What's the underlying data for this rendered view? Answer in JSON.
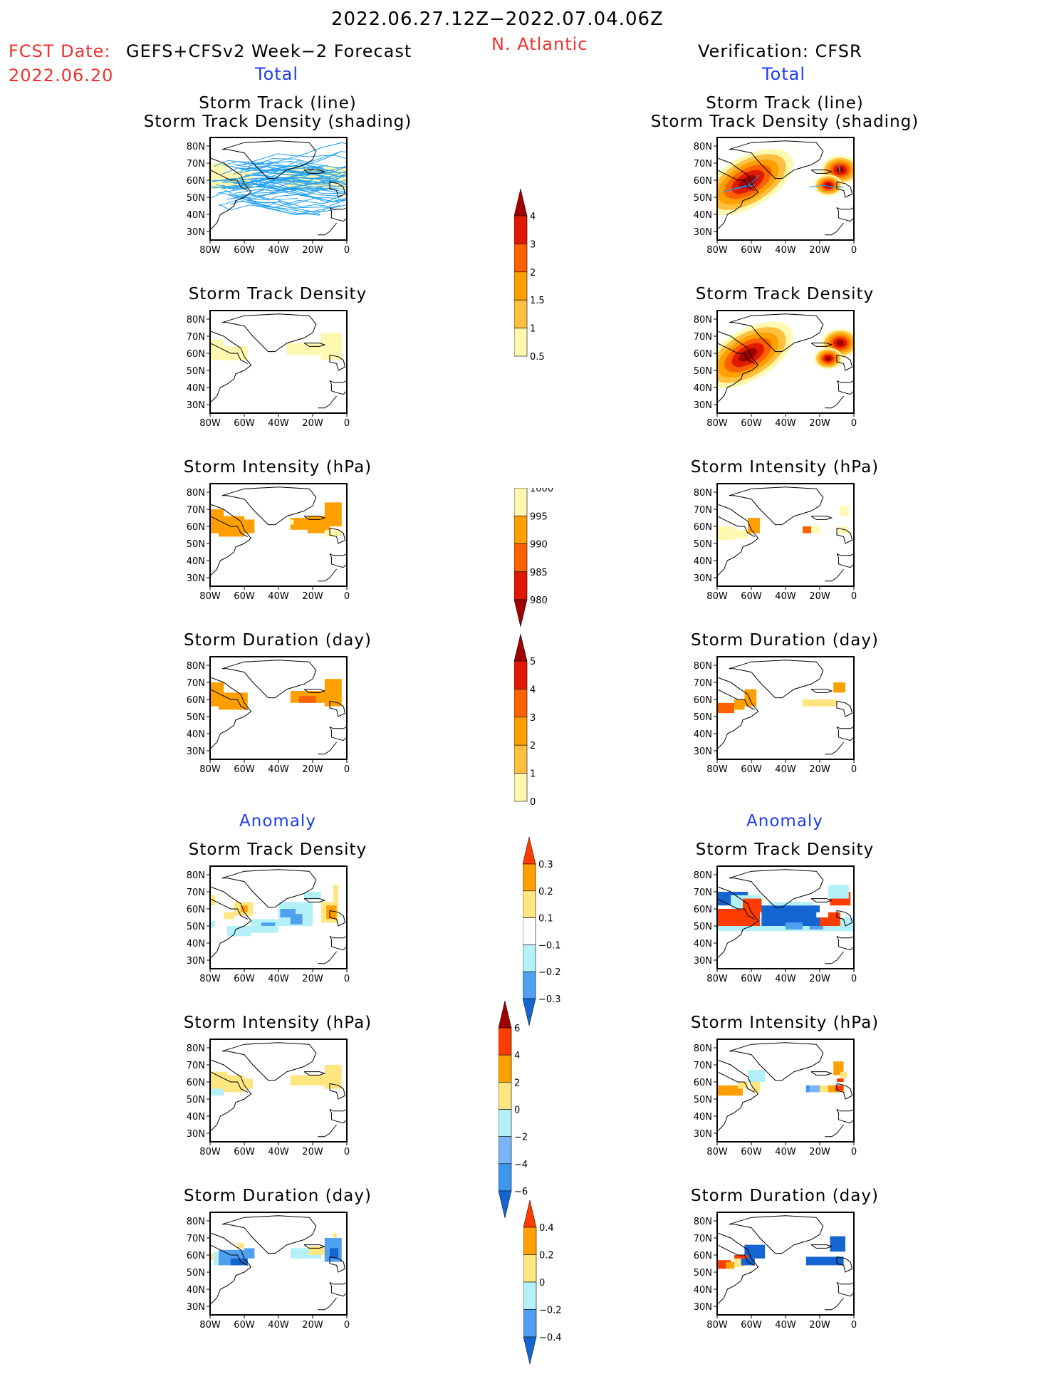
{
  "header": {
    "period": "2022.06.27.12Z−2022.07.04.06Z",
    "region": "N. Atlantic",
    "fcst_label": "FCST Date:",
    "fcst_date": "2022.06.20",
    "forecast_title": "GEFS+CFSv2 Week−2 Forecast",
    "verification_title": "Verification: CFSR"
  },
  "sections": {
    "total_left": "Total",
    "total_right": "Total",
    "anomaly_left": "Anomaly",
    "anomaly_right": "Anomaly"
  },
  "axes": {
    "lat_ticks": [
      "80N",
      "70N",
      "60N",
      "50N",
      "40N",
      "30N"
    ],
    "lon_ticks": [
      "80W",
      "60W",
      "40W",
      "20W",
      "0"
    ]
  },
  "panel_titles": {
    "track_line1": "Storm Track (line)",
    "track_line2": "Storm Track Density (shading)",
    "density": "Storm Track Density",
    "intensity": "Storm Intensity (hPa)",
    "duration": "Storm Duration (day)"
  },
  "colorbars": {
    "total_density": {
      "labels": [
        "4",
        "3",
        "2",
        "1.5",
        "1",
        "0.5"
      ],
      "colors": [
        "#a00000",
        "#e01a00",
        "#ff6000",
        "#ffa000",
        "#ffc040",
        "#fff8b0"
      ],
      "triangle": "top"
    },
    "total_intensity": {
      "labels": [
        "1000",
        "995",
        "990",
        "985",
        "980"
      ],
      "colors": [
        "#fff8b0",
        "#ffa000",
        "#ff6000",
        "#e01a00",
        "#a00000"
      ],
      "triangle": "bottom"
    },
    "total_duration": {
      "labels": [
        "5",
        "4",
        "3",
        "2",
        "1",
        "0"
      ],
      "colors": [
        "#a00000",
        "#e01a00",
        "#ff6000",
        "#ffa000",
        "#ffc040",
        "#fff8b0"
      ],
      "triangle": "top"
    },
    "anom_density": {
      "labels": [
        "0.3",
        "0.2",
        "0.1",
        "−0.1",
        "−0.2",
        "−0.3"
      ],
      "colors": [
        "#ff3c00",
        "#ffa000",
        "#ffe680",
        "#ffffff",
        "#b4f0f8",
        "#50a0f0",
        "#1464d2"
      ],
      "triangle": "both"
    },
    "anom_intensity": {
      "labels": [
        "6",
        "4",
        "2",
        "0",
        "−2",
        "−4",
        "−6"
      ],
      "colors": [
        "#a00000",
        "#ff3c00",
        "#ffa000",
        "#ffe680",
        "#b4f0f8",
        "#78b4f8",
        "#3c96f0",
        "#1464d2"
      ],
      "triangle": "both"
    },
    "anom_duration": {
      "labels": [
        "0.4",
        "0.2",
        "0",
        "−0.2",
        "−0.4"
      ],
      "colors": [
        "#ff3c00",
        "#ffa000",
        "#ffe680",
        "#b4f0f8",
        "#50a0f0",
        "#1464d2"
      ],
      "triangle": "both"
    }
  },
  "chart_data": [
    {
      "id": "fc-track",
      "type": "heatmap",
      "title": "Storm Track (line) / Storm Track Density (shading)",
      "source": "GEFS+CFSv2",
      "xlim": [
        -80,
        0
      ],
      "ylim": [
        25,
        85
      ],
      "cells": [
        [
          -80,
          55,
          -70,
          70,
          "#fff8b0"
        ],
        [
          -70,
          55,
          -55,
          65,
          "#fff8b0"
        ],
        [
          -35,
          55,
          0,
          68,
          "#fff8b0"
        ]
      ],
      "tracks": true
    },
    {
      "id": "ob-track",
      "type": "heatmap",
      "title": "Storm Track (line) / Storm Track Density (shading)",
      "source": "CFSR",
      "xlim": [
        -80,
        0
      ],
      "ylim": [
        25,
        85
      ],
      "blobs": [
        [
          -62,
          59,
          14,
          "density"
        ],
        [
          -8,
          66,
          8,
          "density"
        ],
        [
          -15,
          57,
          6,
          "density"
        ]
      ],
      "tracks_obs": [
        [
          [
            -77,
            53
          ],
          [
            -70,
            55
          ],
          [
            -62,
            57
          ],
          [
            -58,
            60
          ],
          [
            -56,
            63
          ]
        ],
        [
          [
            -74,
            54
          ],
          [
            -65,
            56
          ],
          [
            -58,
            57
          ]
        ],
        [
          [
            -26,
            56
          ],
          [
            -18,
            57
          ],
          [
            -12,
            56
          ],
          [
            -6,
            56
          ]
        ],
        [
          [
            -9,
            69
          ],
          [
            -8,
            64
          ]
        ]
      ]
    },
    {
      "id": "fc-density",
      "type": "heatmap",
      "title": "Storm Track Density",
      "source": "GEFS+CFSv2",
      "xlim": [
        -80,
        0
      ],
      "ylim": [
        25,
        85
      ],
      "cells": [
        [
          -80,
          56,
          -72,
          68,
          "#fff8b0"
        ],
        [
          -72,
          56,
          -58,
          64,
          "#fff8b0"
        ],
        [
          -35,
          59,
          -15,
          66,
          "#fff8b0"
        ],
        [
          -15,
          56,
          -3,
          72,
          "#fff8b0"
        ]
      ]
    },
    {
      "id": "ob-density",
      "type": "heatmap",
      "title": "Storm Track Density",
      "source": "CFSR",
      "xlim": [
        -80,
        0
      ],
      "ylim": [
        25,
        85
      ],
      "blobs": [
        [
          -62,
          59,
          14,
          "density"
        ],
        [
          -8,
          66,
          8,
          "density"
        ],
        [
          -15,
          57,
          6,
          "density"
        ]
      ]
    },
    {
      "id": "fc-intensity",
      "type": "heatmap",
      "title": "Storm Intensity (hPa)",
      "source": "GEFS+CFSv2",
      "xlim": [
        -80,
        0
      ],
      "ylim": [
        25,
        85
      ],
      "cells": [
        [
          -80,
          56,
          -72,
          70,
          "#ffa000"
        ],
        [
          -75,
          54,
          -60,
          66,
          "#ffa000"
        ],
        [
          -60,
          56,
          -54,
          64,
          "#ffa000"
        ],
        [
          -33,
          58,
          -20,
          65,
          "#ffa000"
        ],
        [
          -23,
          56,
          -10,
          66,
          "#ffa000"
        ],
        [
          -13,
          60,
          -3,
          74,
          "#ffa000"
        ],
        [
          -33,
          61,
          -31,
          64,
          "#fff8b0"
        ],
        [
          -13,
          54,
          -3,
          58,
          "#fff8b0"
        ]
      ]
    },
    {
      "id": "ob-intensity",
      "type": "heatmap",
      "title": "Storm Intensity (hPa)",
      "source": "CFSR",
      "xlim": [
        -80,
        0
      ],
      "ylim": [
        25,
        85
      ],
      "cells": [
        [
          -80,
          52,
          -70,
          60,
          "#fff8b0"
        ],
        [
          -70,
          53,
          -62,
          58,
          "#fff8b0"
        ],
        [
          -62,
          56,
          -55,
          65,
          "#ffa000"
        ],
        [
          -30,
          56,
          -25,
          60,
          "#ff6000"
        ],
        [
          -25,
          56,
          -20,
          60,
          "#fff8b0"
        ],
        [
          -10,
          56,
          -3,
          60,
          "#fff8b0"
        ],
        [
          -8,
          66,
          -3,
          72,
          "#fff8b0"
        ]
      ]
    },
    {
      "id": "fc-duration",
      "type": "heatmap",
      "title": "Storm Duration (day)",
      "source": "GEFS+CFSv2",
      "xlim": [
        -80,
        0
      ],
      "ylim": [
        25,
        85
      ],
      "cells": [
        [
          -80,
          56,
          -72,
          70,
          "#ffa000"
        ],
        [
          -75,
          54,
          -58,
          64,
          "#ffa000"
        ],
        [
          -33,
          58,
          -10,
          65,
          "#ffa000"
        ],
        [
          -28,
          58,
          -18,
          62,
          "#ff6000"
        ],
        [
          -13,
          56,
          -3,
          72,
          "#ffa000"
        ]
      ]
    },
    {
      "id": "ob-duration",
      "type": "heatmap",
      "title": "Storm Duration (day)",
      "source": "CFSR",
      "xlim": [
        -80,
        0
      ],
      "ylim": [
        25,
        85
      ],
      "cells": [
        [
          -80,
          52,
          -70,
          58,
          "#ff6000"
        ],
        [
          -70,
          54,
          -64,
          60,
          "#ffa000"
        ],
        [
          -64,
          56,
          -57,
          66,
          "#ffa000"
        ],
        [
          -12,
          64,
          -5,
          70,
          "#ffa000"
        ],
        [
          -30,
          56,
          -10,
          60,
          "#ffe680"
        ]
      ]
    },
    {
      "id": "fc-anom-density",
      "type": "heatmap",
      "title": "Storm Track Density",
      "source": "GEFS+CFSv2",
      "xlim": [
        -80,
        0
      ],
      "ylim": [
        25,
        85
      ],
      "cells": [
        [
          -80,
          62,
          -77,
          68,
          "#ffe680"
        ],
        [
          -66,
          56,
          -55,
          64,
          "#ffe680"
        ],
        [
          -62,
          58,
          -58,
          62,
          "#ffa000"
        ],
        [
          -72,
          54,
          -66,
          58,
          "#ffe680"
        ],
        [
          -80,
          49,
          -77,
          53,
          "#b4f0f8"
        ],
        [
          -56,
          46,
          -40,
          54,
          "#b4f0f8"
        ],
        [
          -40,
          50,
          -20,
          64,
          "#b4f0f8"
        ],
        [
          -25,
          66,
          -15,
          70,
          "#b4f0f8"
        ],
        [
          -70,
          44,
          -56,
          50,
          "#b4f0f8"
        ],
        [
          -50,
          50,
          -42,
          52,
          "#50a0f0"
        ],
        [
          -39,
          55,
          -30,
          60,
          "#50a0f0"
        ],
        [
          -33,
          51,
          -26,
          57,
          "#50a0f0"
        ],
        [
          -15,
          52,
          -5,
          64,
          "#ffe680"
        ],
        [
          -12,
          54,
          -6,
          62,
          "#ffa000"
        ],
        [
          -8,
          63,
          -5,
          74,
          "#ffe680"
        ]
      ]
    },
    {
      "id": "ob-anom-density",
      "type": "heatmap",
      "title": "Storm Track Density",
      "source": "CFSR",
      "xlim": [
        -80,
        0
      ],
      "ylim": [
        25,
        85
      ],
      "cells": [
        [
          -80,
          47,
          0,
          55,
          "#b4f0f8"
        ],
        [
          -80,
          62,
          -62,
          70,
          "#1464d2"
        ],
        [
          -72,
          60,
          -54,
          68,
          "#b4f0f8"
        ],
        [
          -80,
          50,
          -55,
          60,
          "#ff3c00"
        ],
        [
          -65,
          58,
          -54,
          66,
          "#ff3c00"
        ],
        [
          -54,
          50,
          -20,
          62,
          "#1464d2"
        ],
        [
          -50,
          62,
          -24,
          64,
          "#b4f0f8"
        ],
        [
          -40,
          48,
          -30,
          52,
          "#50a0f0"
        ],
        [
          -26,
          48,
          -18,
          50,
          "#50a0f0"
        ],
        [
          -20,
          50,
          -8,
          58,
          "#ff3c00"
        ],
        [
          -14,
          62,
          -2,
          70,
          "#ff3c00"
        ],
        [
          -22,
          55,
          -15,
          58,
          "#ffffff"
        ],
        [
          -15,
          66,
          -3,
          74,
          "#b4f0f8"
        ]
      ]
    },
    {
      "id": "fc-anom-intensity",
      "type": "heatmap",
      "title": "Storm Intensity (hPa)",
      "source": "GEFS+CFSv2",
      "xlim": [
        -80,
        0
      ],
      "ylim": [
        25,
        85
      ],
      "cells": [
        [
          -80,
          56,
          -70,
          66,
          "#ffe680"
        ],
        [
          -75,
          54,
          -60,
          64,
          "#ffe680"
        ],
        [
          -60,
          56,
          -55,
          62,
          "#ffe680"
        ],
        [
          -80,
          52,
          -72,
          56,
          "#b4f0f8"
        ],
        [
          -33,
          58,
          -10,
          64,
          "#ffe680"
        ],
        [
          -13,
          56,
          -3,
          70,
          "#ffe680"
        ]
      ]
    },
    {
      "id": "ob-anom-intensity",
      "type": "heatmap",
      "title": "Storm Intensity (hPa)",
      "source": "CFSR",
      "xlim": [
        -80,
        0
      ],
      "ylim": [
        25,
        85
      ],
      "cells": [
        [
          -80,
          52,
          -65,
          58,
          "#ffa000"
        ],
        [
          -68,
          56,
          -62,
          60,
          "#ffe680"
        ],
        [
          -62,
          60,
          -52,
          67,
          "#b4f0f8"
        ],
        [
          -60,
          54,
          -55,
          60,
          "#ffe680"
        ],
        [
          -28,
          54,
          -20,
          58,
          "#78b4f8"
        ],
        [
          -28,
          54,
          -26,
          58,
          "#3c96f0"
        ],
        [
          -20,
          54,
          -15,
          58,
          "#ffe680"
        ],
        [
          -15,
          54,
          -6,
          58,
          "#ffa000"
        ],
        [
          -11,
          55,
          -6,
          58,
          "#ff3c00"
        ],
        [
          -12,
          64,
          -6,
          72,
          "#ffa000"
        ],
        [
          -8,
          62,
          -4,
          66,
          "#ffe680"
        ],
        [
          -10,
          60,
          -6,
          62,
          "#ff3c00"
        ]
      ]
    },
    {
      "id": "fc-anom-duration",
      "type": "heatmap",
      "title": "Storm Duration (day)",
      "source": "GEFS+CFSv2",
      "xlim": [
        -80,
        0
      ],
      "ylim": [
        25,
        85
      ],
      "cells": [
        [
          -78,
          54,
          -70,
          62,
          "#b4f0f8"
        ],
        [
          -75,
          54,
          -60,
          63,
          "#50a0f0"
        ],
        [
          -68,
          54,
          -58,
          58,
          "#1464d2"
        ],
        [
          -60,
          58,
          -54,
          64,
          "#50a0f0"
        ],
        [
          -64,
          64,
          -60,
          67,
          "#ffe680"
        ],
        [
          -80,
          57,
          -78,
          61,
          "#ffe680"
        ],
        [
          -33,
          58,
          -15,
          64,
          "#b4f0f8"
        ],
        [
          -22,
          60,
          -13,
          65,
          "#ffe680"
        ],
        [
          -13,
          56,
          -3,
          70,
          "#50a0f0"
        ],
        [
          -10,
          58,
          -5,
          64,
          "#1464d2"
        ],
        [
          -8,
          70,
          -6,
          73,
          "#ffe680"
        ]
      ]
    },
    {
      "id": "ob-anom-duration",
      "type": "heatmap",
      "title": "Storm Duration (day)",
      "source": "CFSR",
      "xlim": [
        -80,
        0
      ],
      "ylim": [
        25,
        85
      ],
      "cells": [
        [
          -80,
          52,
          -72,
          57,
          "#ff3c00"
        ],
        [
          -75,
          52,
          -70,
          56,
          "#ffa000"
        ],
        [
          -70,
          53,
          -64,
          58,
          "#ffe680"
        ],
        [
          -66,
          54,
          -58,
          58,
          "#1464d2"
        ],
        [
          -64,
          58,
          -52,
          66,
          "#1464d2"
        ],
        [
          -70,
          58,
          -62,
          60,
          "#ff3c00"
        ],
        [
          -28,
          54,
          -6,
          59,
          "#1464d2"
        ],
        [
          -14,
          62,
          -5,
          71,
          "#1464d2"
        ]
      ]
    }
  ]
}
